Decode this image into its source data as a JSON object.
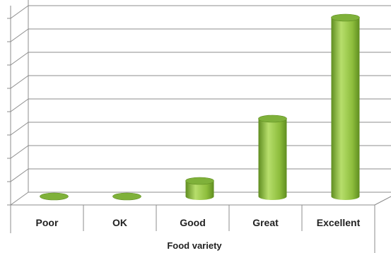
{
  "chart_data": {
    "type": "bar",
    "style": "3d-cylinder",
    "categories": [
      "Poor",
      "OK",
      "Good",
      "Great",
      "Excellent"
    ],
    "values": [
      0,
      0,
      2,
      10,
      23
    ],
    "xlabel": "Food variety",
    "ylabel": "",
    "ylim": [
      0,
      24
    ],
    "grid": true,
    "legend": "none",
    "colors": {
      "bar_light": "#b7de6c",
      "bar_mid": "#8dbd3c",
      "bar_dark": "#5f8d20",
      "bar_top": "#7fb13a",
      "grid": "#8c8c8c"
    }
  }
}
